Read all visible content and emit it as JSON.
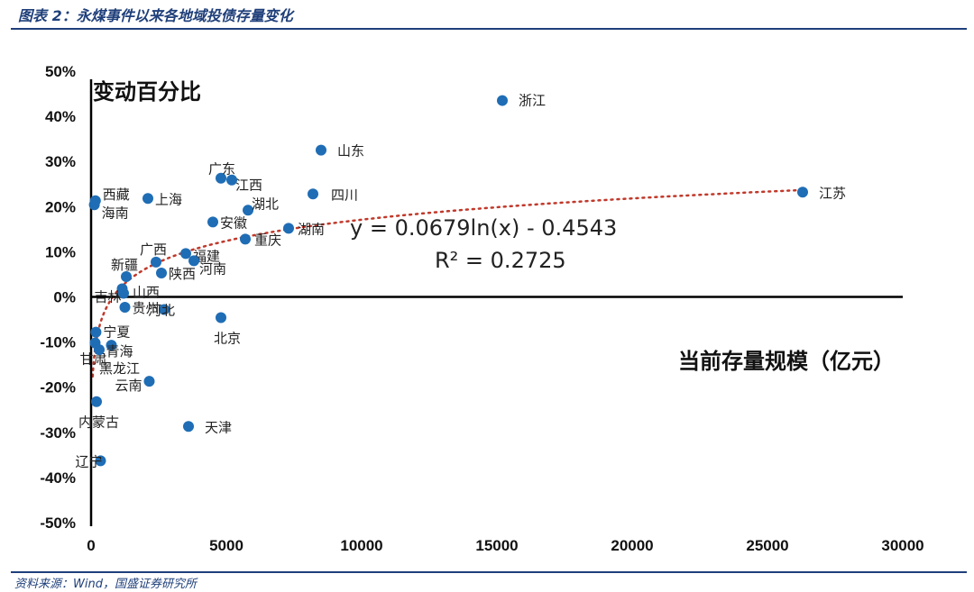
{
  "header": {
    "title": "图表 2：永煤事件以来各地域投债存量变化"
  },
  "footer": {
    "source": "资料来源：Wind，国盛证券研究所"
  },
  "chart_data": {
    "type": "scatter",
    "ylabel": "变动百分比",
    "xlabel": "当前存量规模（亿元）",
    "xlim": [
      0,
      30000
    ],
    "ylim": [
      -0.5,
      0.5
    ],
    "x_ticks": [
      0,
      5000,
      10000,
      15000,
      20000,
      25000,
      30000
    ],
    "x_tick_labels": [
      "0",
      "5000",
      "10000",
      "15000",
      "20000",
      "25000",
      "30000"
    ],
    "y_ticks": [
      -0.5,
      -0.4,
      -0.3,
      -0.2,
      -0.1,
      0,
      0.1,
      0.2,
      0.3,
      0.4,
      0.5
    ],
    "y_tick_labels": [
      "-50%",
      "-40%",
      "-30%",
      "-20%",
      "-10%",
      "0%",
      "10%",
      "20%",
      "30%",
      "40%",
      "50%"
    ],
    "point_color": "#1f6db5",
    "trend_color": "#c0392b",
    "trendline": {
      "type": "log",
      "a": 0.0679,
      "b": -0.4543,
      "equation": "y = 0.0679ln(x) - 0.4543",
      "r2": "R² = 0.2725"
    },
    "points": [
      {
        "name": "浙江",
        "x": 15200,
        "y": 0.435
      },
      {
        "name": "山东",
        "x": 8500,
        "y": 0.325
      },
      {
        "name": "江苏",
        "x": 26300,
        "y": 0.232
      },
      {
        "name": "四川",
        "x": 8200,
        "y": 0.228
      },
      {
        "name": "广东",
        "x": 4800,
        "y": 0.263
      },
      {
        "name": "江西",
        "x": 5200,
        "y": 0.259
      },
      {
        "name": "湖北",
        "x": 5800,
        "y": 0.192
      },
      {
        "name": "安徽",
        "x": 4500,
        "y": 0.166
      },
      {
        "name": "湖南",
        "x": 7300,
        "y": 0.152
      },
      {
        "name": "重庆",
        "x": 5700,
        "y": 0.128
      },
      {
        "name": "上海",
        "x": 2100,
        "y": 0.218
      },
      {
        "name": "西藏",
        "x": 160,
        "y": 0.213
      },
      {
        "name": "海南",
        "x": 120,
        "y": 0.204
      },
      {
        "name": "广西",
        "x": 2400,
        "y": 0.077
      },
      {
        "name": "福建",
        "x": 3500,
        "y": 0.096
      },
      {
        "name": "河南",
        "x": 3800,
        "y": 0.08
      },
      {
        "name": "陕西",
        "x": 2600,
        "y": 0.053
      },
      {
        "name": "新疆",
        "x": 1300,
        "y": 0.045
      },
      {
        "name": "吉林",
        "x": 1150,
        "y": 0.018
      },
      {
        "name": "山西",
        "x": 1200,
        "y": 0.008
      },
      {
        "name": "贵州",
        "x": 1250,
        "y": -0.023
      },
      {
        "name": "河北",
        "x": 2700,
        "y": -0.028
      },
      {
        "name": "北京",
        "x": 4800,
        "y": -0.046
      },
      {
        "name": "宁夏",
        "x": 180,
        "y": -0.078
      },
      {
        "name": "甘肃",
        "x": 150,
        "y": -0.102
      },
      {
        "name": "青海",
        "x": 750,
        "y": -0.107
      },
      {
        "name": "黑龙江",
        "x": 300,
        "y": -0.117
      },
      {
        "name": "云南",
        "x": 2150,
        "y": -0.187
      },
      {
        "name": "内蒙古",
        "x": 200,
        "y": -0.232
      },
      {
        "name": "天津",
        "x": 3600,
        "y": -0.287
      },
      {
        "name": "辽宁",
        "x": 350,
        "y": -0.363
      }
    ]
  }
}
